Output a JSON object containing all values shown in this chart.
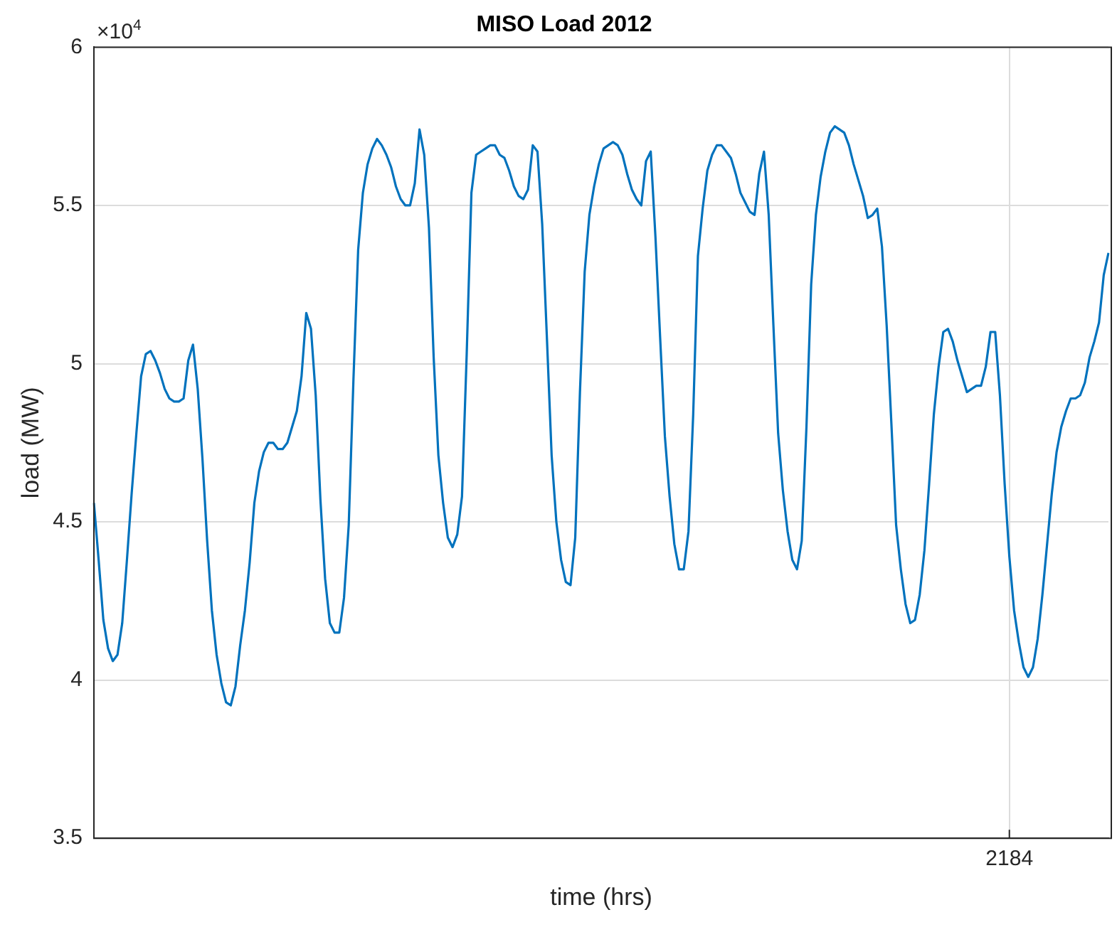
{
  "chart_data": {
    "type": "line",
    "title": "MISO Load 2012",
    "xlabel": "time (hrs)",
    "ylabel": "load (MW)",
    "annotations": [
      "×10$^{4}$"
    ],
    "categories": [
      null,
      null,
      null,
      null,
      null,
      null,
      null,
      null,
      null,
      null,
      null,
      null,
      null,
      null,
      null,
      null,
      null,
      null,
      null,
      null,
      null,
      null,
      null,
      null,
      null,
      null,
      null,
      null,
      null,
      null,
      null,
      null,
      null,
      null,
      null,
      null,
      null,
      null,
      null,
      null,
      null,
      null,
      null,
      null,
      null,
      null,
      null,
      null,
      null,
      null,
      null,
      null,
      null,
      null,
      null,
      null,
      null,
      null,
      null,
      null,
      null,
      null,
      null,
      null,
      null,
      null,
      null,
      null,
      null,
      null,
      null,
      null,
      null,
      null,
      null,
      null,
      null,
      null,
      null,
      null,
      null,
      null,
      null,
      null,
      null,
      null,
      null,
      null,
      null,
      null,
      null,
      null,
      null,
      null,
      null,
      null,
      null,
      null,
      null,
      null,
      null,
      null,
      null,
      null,
      null,
      null,
      null,
      null,
      null,
      null,
      null,
      null,
      null,
      null,
      null,
      null,
      null,
      null,
      null,
      null,
      null,
      null,
      null,
      null,
      null,
      null,
      null,
      null,
      null,
      null,
      null,
      null,
      null,
      null,
      null,
      null,
      null,
      null,
      null,
      null,
      null,
      null,
      null,
      null,
      null,
      null,
      null,
      null,
      null,
      null,
      null,
      null,
      null,
      null,
      null,
      null,
      null,
      null,
      null,
      null,
      null,
      null,
      null,
      null,
      null,
      null,
      null,
      null,
      null,
      null,
      null,
      null,
      null,
      null,
      null,
      null,
      null,
      null,
      null,
      null,
      null,
      null,
      null,
      null,
      null,
      null,
      null,
      null,
      null,
      null,
      null,
      null,
      null,
      null,
      "2184",
      null,
      null,
      null,
      null,
      null,
      null,
      null,
      null,
      null,
      null,
      null,
      null,
      null,
      null,
      null,
      null,
      null,
      null,
      null,
      null,
      null
    ],
    "ylim": [
      3.5,
      6
    ],
    "yticks": [
      3.5,
      4,
      4.5,
      5,
      5.5,
      6
    ],
    "grid": true,
    "legend": false,
    "marker": "none",
    "line_style": "solid",
    "series": [
      {
        "color": "#0072bd",
        "values": [
          4.56,
          4.38,
          4.19,
          4.1,
          4.06,
          4.08,
          4.18,
          4.38,
          4.59,
          4.78,
          4.96,
          5.03,
          5.04,
          5.01,
          4.97,
          4.92,
          4.89,
          4.88,
          4.88,
          4.89,
          5.01,
          5.06,
          4.92,
          4.7,
          4.44,
          4.22,
          4.08,
          3.99,
          3.93,
          3.92,
          3.98,
          4.11,
          4.22,
          4.37,
          4.56,
          4.66,
          4.72,
          4.75,
          4.75,
          4.73,
          4.73,
          4.75,
          4.8,
          4.85,
          4.96,
          5.16,
          5.11,
          4.9,
          4.57,
          4.32,
          4.18,
          4.15,
          4.15,
          4.26,
          4.49,
          4.95,
          5.36,
          5.54,
          5.63,
          5.68,
          5.71,
          5.69,
          5.66,
          5.62,
          5.56,
          5.52,
          5.5,
          5.5,
          5.57,
          5.74,
          5.66,
          5.43,
          5.02,
          4.71,
          4.56,
          4.45,
          4.42,
          4.46,
          4.58,
          5.03,
          5.54,
          5.66,
          5.67,
          5.68,
          5.69,
          5.69,
          5.66,
          5.65,
          5.61,
          5.56,
          5.53,
          5.52,
          5.55,
          5.69,
          5.67,
          5.44,
          5.08,
          4.71,
          4.5,
          4.38,
          4.31,
          4.3,
          4.45,
          4.91,
          5.29,
          5.47,
          5.56,
          5.63,
          5.68,
          5.69,
          5.7,
          5.69,
          5.66,
          5.6,
          5.55,
          5.52,
          5.5,
          5.64,
          5.67,
          5.4,
          5.08,
          4.77,
          4.58,
          4.43,
          4.35,
          4.35,
          4.47,
          4.84,
          5.34,
          5.49,
          5.61,
          5.66,
          5.69,
          5.69,
          5.67,
          5.65,
          5.6,
          5.54,
          5.51,
          5.48,
          5.47,
          5.6,
          5.67,
          5.47,
          5.12,
          4.78,
          4.6,
          4.47,
          4.38,
          4.35,
          4.44,
          4.8,
          5.25,
          5.47,
          5.59,
          5.67,
          5.73,
          5.75,
          5.74,
          5.73,
          5.69,
          5.63,
          5.58,
          5.53,
          5.46,
          5.47,
          5.49,
          5.37,
          5.12,
          4.81,
          4.49,
          4.35,
          4.24,
          4.18,
          4.19,
          4.27,
          4.41,
          4.62,
          4.84,
          4.99,
          5.1,
          5.11,
          5.07,
          5.01,
          4.96,
          4.91,
          4.92,
          4.93,
          4.93,
          4.99,
          5.1,
          5.1,
          4.9,
          4.62,
          4.39,
          4.22,
          4.12,
          4.04,
          4.01,
          4.04,
          4.13,
          4.27,
          4.43,
          4.59,
          4.72,
          4.8,
          4.85,
          4.89,
          4.89,
          4.9,
          4.94,
          5.02,
          5.07,
          5.13,
          5.28,
          5.35
        ]
      }
    ]
  }
}
